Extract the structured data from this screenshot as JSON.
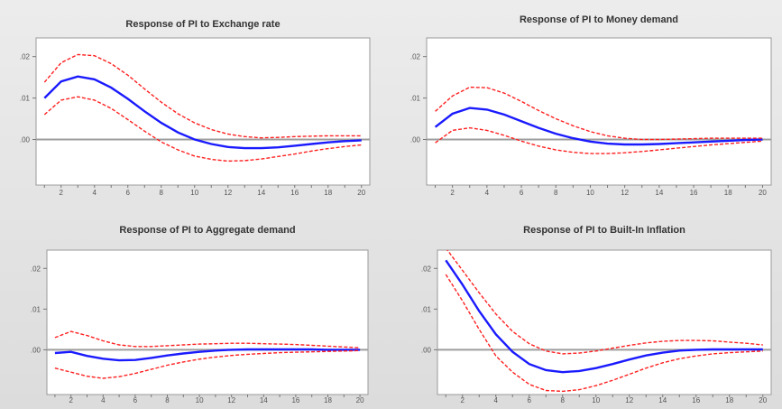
{
  "chart_data": [
    {
      "type": "line",
      "title": "Response of PI to Exchange rate",
      "x": [
        1,
        2,
        3,
        4,
        5,
        6,
        7,
        8,
        9,
        10,
        11,
        12,
        13,
        14,
        15,
        16,
        17,
        18,
        19,
        20
      ],
      "xticks": [
        2,
        4,
        6,
        8,
        10,
        12,
        14,
        16,
        18,
        20
      ],
      "yticks": [
        0,
        0.01,
        0.02
      ],
      "ytick_labels": [
        ".00",
        ".01",
        ".02"
      ],
      "ylim": [
        -0.011,
        0.0245
      ],
      "zero_line": 0,
      "series": [
        {
          "role": "response",
          "color": "#1a1aff",
          "style": "solid",
          "values": [
            0.01,
            0.014,
            0.0152,
            0.0145,
            0.0125,
            0.0098,
            0.0068,
            0.004,
            0.0017,
            0.0,
            -0.0011,
            -0.0018,
            -0.0021,
            -0.0021,
            -0.0019,
            -0.0015,
            -0.0011,
            -0.0007,
            -0.0004,
            -0.0002
          ]
        },
        {
          "role": "upper",
          "color": "#ff2020",
          "style": "dashed",
          "values": [
            0.0138,
            0.0185,
            0.0205,
            0.0202,
            0.0183,
            0.0155,
            0.0122,
            0.009,
            0.0062,
            0.004,
            0.0024,
            0.0013,
            0.0007,
            0.0004,
            0.0005,
            0.0007,
            0.0008,
            0.0009,
            0.0009,
            0.0009
          ]
        },
        {
          "role": "lower",
          "color": "#ff2020",
          "style": "dashed",
          "values": [
            0.006,
            0.0095,
            0.0103,
            0.0095,
            0.0075,
            0.0048,
            0.002,
            -0.0006,
            -0.0025,
            -0.004,
            -0.0048,
            -0.0052,
            -0.0051,
            -0.0047,
            -0.0041,
            -0.0035,
            -0.0028,
            -0.0022,
            -0.0017,
            -0.0013
          ]
        }
      ]
    },
    {
      "type": "line",
      "title": "Response of PI to Money demand",
      "x": [
        1,
        2,
        3,
        4,
        5,
        6,
        7,
        8,
        9,
        10,
        11,
        12,
        13,
        14,
        15,
        16,
        17,
        18,
        19,
        20
      ],
      "xticks": [
        2,
        4,
        6,
        8,
        10,
        12,
        14,
        16,
        18,
        20
      ],
      "yticks": [
        0,
        0.01,
        0.02
      ],
      "ytick_labels": [
        ".00",
        ".01",
        ".02"
      ],
      "ylim": [
        -0.011,
        0.0245
      ],
      "zero_line": 0,
      "series": [
        {
          "role": "response",
          "color": "#1a1aff",
          "style": "solid",
          "values": [
            0.003,
            0.0062,
            0.0076,
            0.0072,
            0.006,
            0.0044,
            0.0028,
            0.0014,
            0.0003,
            -0.0005,
            -0.001,
            -0.0012,
            -0.0012,
            -0.0011,
            -0.0009,
            -0.0007,
            -0.0005,
            -0.0003,
            -0.0001,
            0.0
          ]
        },
        {
          "role": "upper",
          "color": "#ff2020",
          "style": "dashed",
          "values": [
            0.0068,
            0.0105,
            0.0126,
            0.0125,
            0.0112,
            0.0092,
            0.007,
            0.005,
            0.0033,
            0.0019,
            0.0009,
            0.0003,
            0.0,
            0.0,
            0.0001,
            0.0002,
            0.0003,
            0.0003,
            0.0003,
            0.0003
          ]
        },
        {
          "role": "lower",
          "color": "#ff2020",
          "style": "dashed",
          "values": [
            -0.0008,
            0.0022,
            0.0028,
            0.0022,
            0.001,
            -0.0004,
            -0.0016,
            -0.0025,
            -0.0031,
            -0.0034,
            -0.0034,
            -0.0032,
            -0.0029,
            -0.0025,
            -0.0021,
            -0.0017,
            -0.0013,
            -0.001,
            -0.0007,
            -0.0004
          ]
        }
      ]
    },
    {
      "type": "line",
      "title": "Response of PI to Aggregate demand",
      "x": [
        1,
        2,
        3,
        4,
        5,
        6,
        7,
        8,
        9,
        10,
        11,
        12,
        13,
        14,
        15,
        16,
        17,
        18,
        19,
        20
      ],
      "xticks": [
        2,
        4,
        6,
        8,
        10,
        12,
        14,
        16,
        18,
        20
      ],
      "yticks": [
        0,
        0.01,
        0.02
      ],
      "ytick_labels": [
        ".00",
        ".01",
        ".02"
      ],
      "ylim": [
        -0.011,
        0.0245
      ],
      "zero_line": 0,
      "series": [
        {
          "role": "response",
          "color": "#1a1aff",
          "style": "solid",
          "values": [
            -0.0008,
            -0.0005,
            -0.0015,
            -0.0022,
            -0.0026,
            -0.0025,
            -0.002,
            -0.0014,
            -0.0009,
            -0.0005,
            -0.0002,
            0.0,
            0.0001,
            0.0001,
            0.0001,
            0.0001,
            0.0001,
            0.0,
            0.0,
            0.0
          ]
        },
        {
          "role": "upper",
          "color": "#ff2020",
          "style": "dashed",
          "values": [
            0.003,
            0.0045,
            0.0035,
            0.0022,
            0.0012,
            0.0008,
            0.0008,
            0.001,
            0.0012,
            0.0014,
            0.0015,
            0.0016,
            0.0016,
            0.0015,
            0.0014,
            0.0013,
            0.0011,
            0.0009,
            0.0007,
            0.0005
          ]
        },
        {
          "role": "lower",
          "color": "#ff2020",
          "style": "dashed",
          "values": [
            -0.0045,
            -0.0055,
            -0.0065,
            -0.007,
            -0.0066,
            -0.0058,
            -0.0048,
            -0.0038,
            -0.003,
            -0.0023,
            -0.0018,
            -0.0014,
            -0.0011,
            -0.0009,
            -0.0007,
            -0.0006,
            -0.0005,
            -0.0004,
            -0.0003,
            -0.0002
          ]
        }
      ]
    },
    {
      "type": "line",
      "title": "Response of PI to Built-In Inflation",
      "x": [
        1,
        2,
        3,
        4,
        5,
        6,
        7,
        8,
        9,
        10,
        11,
        12,
        13,
        14,
        15,
        16,
        17,
        18,
        19,
        20
      ],
      "xticks": [
        2,
        4,
        6,
        8,
        10,
        12,
        14,
        16,
        18,
        20
      ],
      "yticks": [
        0,
        0.01,
        0.02
      ],
      "ytick_labels": [
        ".00",
        ".01",
        ".02"
      ],
      "ylim": [
        -0.011,
        0.0245
      ],
      "zero_line": 0,
      "series": [
        {
          "role": "response",
          "color": "#1a1aff",
          "style": "solid",
          "values": [
            0.022,
            0.016,
            0.0095,
            0.0038,
            -0.0005,
            -0.0035,
            -0.005,
            -0.0055,
            -0.0052,
            -0.0045,
            -0.0035,
            -0.0024,
            -0.0014,
            -0.0007,
            -0.0002,
            0.0,
            0.0001,
            0.0001,
            0.0001,
            0.0001
          ]
        },
        {
          "role": "upper",
          "color": "#ff2020",
          "style": "dashed",
          "values": [
            0.025,
            0.0195,
            0.014,
            0.0088,
            0.0045,
            0.0015,
            -0.0003,
            -0.001,
            -0.0008,
            -0.0003,
            0.0004,
            0.0011,
            0.0017,
            0.0021,
            0.0023,
            0.0023,
            0.0022,
            0.0019,
            0.0016,
            0.0012
          ]
        },
        {
          "role": "lower",
          "color": "#ff2020",
          "style": "dashed",
          "values": [
            0.0185,
            0.012,
            0.005,
            -0.0015,
            -0.0055,
            -0.0085,
            -0.01,
            -0.0102,
            -0.0098,
            -0.0088,
            -0.0075,
            -0.006,
            -0.0045,
            -0.0032,
            -0.0022,
            -0.0015,
            -0.001,
            -0.0007,
            -0.0005,
            -0.0003
          ]
        }
      ]
    }
  ]
}
